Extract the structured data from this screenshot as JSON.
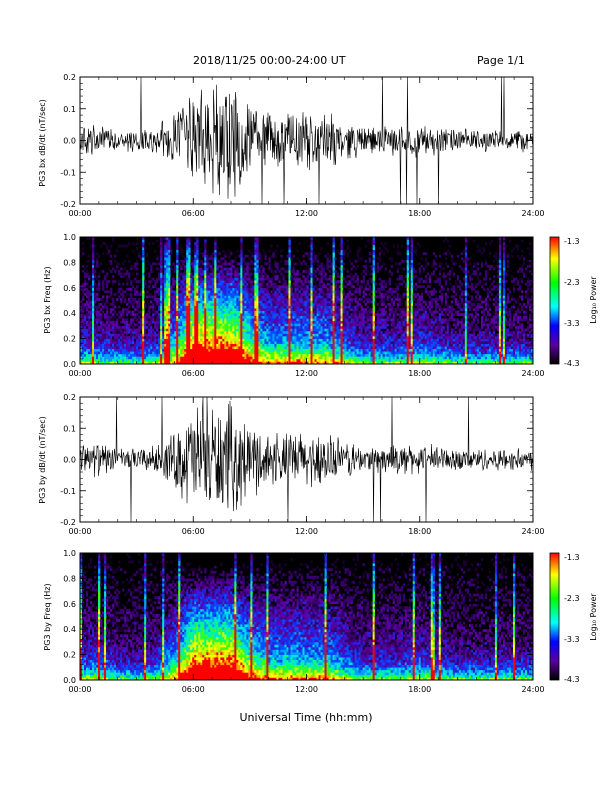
{
  "header": {
    "title": "2018/11/25  00:00-24:00 UT",
    "page": "Page 1/1"
  },
  "footer": {
    "xlabel": "Universal Time (hh:mm)"
  },
  "colorbar": {
    "label": "Log₁₀ Power",
    "ticks": [
      "-1.3",
      "-2.3",
      "-3.3",
      "-4.3"
    ],
    "colors": [
      "#ff0000",
      "#ffff00",
      "#00ff00",
      "#00ffff",
      "#0000ff",
      "#5a00a0",
      "#000000"
    ]
  },
  "chart_data": [
    {
      "type": "line",
      "ylabel": "PG3 bx dB/dt (nT/sec)",
      "xlim": [
        "00:00",
        "24:00"
      ],
      "ylim": [
        -0.2,
        0.2
      ],
      "x_ticks": [
        "00:00",
        "06:00",
        "12:00",
        "18:00",
        "24:00"
      ],
      "y_ticks": [
        "0.2",
        "0.1",
        "0.0",
        "-0.1",
        "-0.2"
      ],
      "activity_hours": [
        0,
        1,
        2,
        3,
        4,
        5,
        6,
        7,
        8,
        9,
        10,
        11,
        12,
        13,
        14,
        15,
        16,
        17,
        18,
        19,
        20,
        21,
        22,
        23,
        24
      ],
      "envelope_nT_per_sec": [
        0.06,
        0.05,
        0.04,
        0.04,
        0.05,
        0.1,
        0.2,
        0.2,
        0.2,
        0.13,
        0.1,
        0.1,
        0.1,
        0.1,
        0.07,
        0.05,
        0.05,
        0.05,
        0.06,
        0.05,
        0.04,
        0.04,
        0.04,
        0.04,
        0.04
      ]
    },
    {
      "type": "heatmap",
      "ylabel": "PG3 bx Freq (Hz)",
      "xlim": [
        "00:00",
        "24:00"
      ],
      "ylim": [
        0,
        1.0
      ],
      "x_ticks": [
        "00:00",
        "06:00",
        "12:00",
        "18:00",
        "24:00"
      ],
      "y_ticks": [
        "1.0",
        "0.8",
        "0.6",
        "0.4",
        "0.2",
        "0.0"
      ],
      "zlabel": "Log₁₀ Power",
      "zlim": [
        -4.3,
        -1.3
      ]
    },
    {
      "type": "line",
      "ylabel": "PG3 by dB/dt (nT/sec)",
      "xlim": [
        "00:00",
        "24:00"
      ],
      "ylim": [
        -0.2,
        0.2
      ],
      "x_ticks": [
        "00:00",
        "06:00",
        "12:00",
        "18:00",
        "24:00"
      ],
      "y_ticks": [
        "0.2",
        "0.1",
        "0.0",
        "-0.1",
        "-0.2"
      ],
      "activity_hours": [
        0,
        1,
        2,
        3,
        4,
        5,
        6,
        7,
        8,
        9,
        10,
        11,
        12,
        13,
        14,
        15,
        16,
        17,
        18,
        19,
        20,
        21,
        22,
        23,
        24
      ],
      "envelope_nT_per_sec": [
        0.06,
        0.06,
        0.04,
        0.04,
        0.05,
        0.1,
        0.2,
        0.2,
        0.2,
        0.13,
        0.1,
        0.1,
        0.1,
        0.1,
        0.07,
        0.05,
        0.05,
        0.05,
        0.06,
        0.05,
        0.04,
        0.04,
        0.04,
        0.04,
        0.04
      ]
    },
    {
      "type": "heatmap",
      "ylabel": "PG3 by Freq (Hz)",
      "xlim": [
        "00:00",
        "24:00"
      ],
      "ylim": [
        0,
        1.0
      ],
      "x_ticks": [
        "00:00",
        "06:00",
        "12:00",
        "18:00",
        "24:00"
      ],
      "y_ticks": [
        "1.0",
        "0.8",
        "0.6",
        "0.4",
        "0.2",
        "0.0"
      ],
      "zlabel": "Log₁₀ Power",
      "zlim": [
        -4.3,
        -1.3
      ]
    }
  ]
}
